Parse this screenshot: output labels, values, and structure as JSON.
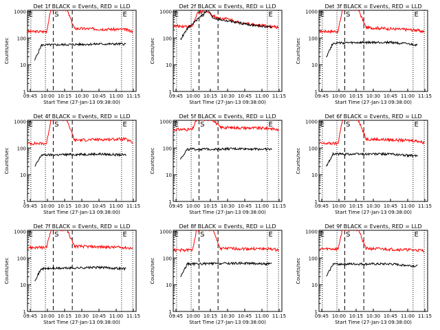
{
  "figure": {
    "layout": "3x3 grid",
    "colors": {
      "events": "#000000",
      "lld": "#ff0000",
      "axes": "#000000",
      "background": "#ffffff"
    },
    "common": {
      "ylabel": "Counts/sec",
      "xlabel": "Start Time (27-Jan-13 09:38:00)",
      "xticks": [
        "09:45",
        "10:00",
        "10:15",
        "10:30",
        "10:45",
        "11:00",
        "11:15"
      ],
      "yticks": [
        "1",
        "10",
        "100",
        "1000"
      ],
      "yscale": "log",
      "ylim": [
        1,
        1100
      ],
      "xlim_min": [
        3,
        100
      ]
    }
  },
  "chart_data": [
    {
      "type": "line",
      "title": "Det 1f BLACK = Events, RED = LLD",
      "markers": {
        "E_left": "E",
        "S": "S",
        "E_right": "E"
      },
      "events": {
        "x": [
          9.5,
          15.5,
          67,
          91
        ],
        "y": [
          15,
          55,
          60,
          60
        ]
      },
      "lld": {
        "x": [
          3,
          20,
          24,
          38,
          45,
          90,
          97
        ],
        "y": [
          175,
          175,
          1200,
          1200,
          230,
          210,
          180
        ]
      },
      "series": [
        {
          "name": "BLACK = Events"
        },
        {
          "name": "RED = LLD"
        }
      ]
    },
    {
      "type": "line",
      "title": "Det 2f BLACK = Events, RED = LLD",
      "markers": {
        "E_left": "E",
        "S": "S",
        "E_right": "E"
      },
      "events": {
        "x": [
          9.5,
          15.5,
          34,
          38,
          44,
          55,
          75,
          91
        ],
        "y": [
          90,
          220,
          1200,
          600,
          500,
          420,
          300,
          260
        ]
      },
      "lld": {
        "x": [
          3,
          20,
          25,
          32,
          38,
          44,
          50,
          60,
          75,
          91,
          97
        ],
        "y": [
          280,
          280,
          900,
          1100,
          700,
          550,
          550,
          400,
          320,
          270,
          250
        ]
      },
      "series": [
        {
          "name": "BLACK = Events"
        },
        {
          "name": "RED = LLD"
        }
      ]
    },
    {
      "type": "line",
      "title": "Det 3f BLACK = Events, RED = LLD",
      "markers": {
        "E_left": "E",
        "S": "S",
        "E_right": "E"
      },
      "events": {
        "x": [
          9.5,
          15.5,
          67,
          91
        ],
        "y": [
          20,
          65,
          70,
          55
        ]
      },
      "lld": {
        "x": [
          3,
          20,
          24,
          38,
          45,
          90,
          97
        ],
        "y": [
          180,
          180,
          1200,
          1200,
          250,
          200,
          170
        ]
      },
      "series": [
        {
          "name": "BLACK = Events"
        },
        {
          "name": "RED = LLD"
        }
      ]
    },
    {
      "type": "line",
      "title": "Det 4f BLACK = Events, RED = LLD",
      "markers": {
        "E_left": "E",
        "S": "S",
        "E_right": "E"
      },
      "events": {
        "x": [
          9.5,
          15.5,
          67,
          91
        ],
        "y": [
          20,
          55,
          60,
          55
        ]
      },
      "lld": {
        "x": [
          3,
          20,
          24,
          38,
          45,
          90,
          97
        ],
        "y": [
          150,
          150,
          1200,
          1200,
          200,
          220,
          160
        ]
      },
      "series": [
        {
          "name": "BLACK = Events"
        },
        {
          "name": "RED = LLD"
        }
      ]
    },
    {
      "type": "line",
      "title": "Det 5f BLACK = Events, RED = LLD",
      "markers": {
        "E_left": "E",
        "S": "S",
        "E_right": "E"
      },
      "events": {
        "x": [
          9.5,
          15.5,
          67,
          91
        ],
        "y": [
          40,
          90,
          95,
          90
        ]
      },
      "lld": {
        "x": [
          3,
          20,
          24,
          38,
          45,
          90,
          97
        ],
        "y": [
          500,
          500,
          1200,
          1200,
          600,
          550,
          480
        ]
      },
      "series": [
        {
          "name": "BLACK = Events"
        },
        {
          "name": "RED = LLD"
        }
      ]
    },
    {
      "type": "line",
      "title": "Det 6f BLACK = Events, RED = LLD",
      "markers": {
        "E_left": "E",
        "S": "S",
        "E_right": "E"
      },
      "events": {
        "x": [
          9.5,
          15.5,
          67,
          91
        ],
        "y": [
          20,
          60,
          60,
          50
        ]
      },
      "lld": {
        "x": [
          3,
          20,
          24,
          38,
          45,
          90,
          97
        ],
        "y": [
          150,
          150,
          1200,
          1200,
          220,
          190,
          160
        ]
      },
      "series": [
        {
          "name": "BLACK = Events"
        },
        {
          "name": "RED = LLD"
        }
      ]
    },
    {
      "type": "line",
      "title": "Det 7f BLACK = Events, RED = LLD",
      "markers": {
        "E_left": "E",
        "S": "S",
        "E_right": "E"
      },
      "events": {
        "x": [
          9.5,
          15.5,
          67,
          91
        ],
        "y": [
          15,
          40,
          45,
          40
        ]
      },
      "lld": {
        "x": [
          3,
          20,
          24,
          38,
          45,
          90,
          97
        ],
        "y": [
          250,
          250,
          1200,
          1200,
          280,
          250,
          230
        ]
      },
      "series": [
        {
          "name": "BLACK = Events"
        },
        {
          "name": "RED = LLD"
        }
      ]
    },
    {
      "type": "line",
      "title": "Det 8f BLACK = Events, RED = LLD",
      "markers": {
        "E_left": "E",
        "S": "S",
        "E_right": "E"
      },
      "events": {
        "x": [
          9.5,
          15.5,
          67,
          91
        ],
        "y": [
          20,
          60,
          65,
          60
        ]
      },
      "lld": {
        "x": [
          3,
          20,
          24,
          38,
          45,
          90,
          97
        ],
        "y": [
          200,
          200,
          1200,
          1200,
          230,
          220,
          200
        ]
      },
      "series": [
        {
          "name": "BLACK = Events"
        },
        {
          "name": "RED = LLD"
        }
      ]
    },
    {
      "type": "line",
      "title": "Det 9f BLACK = Events, RED = LLD",
      "markers": {
        "E_left": "E",
        "S": "S",
        "E_right": "E"
      },
      "events": {
        "x": [
          9.5,
          15.5,
          67,
          91
        ],
        "y": [
          20,
          60,
          60,
          50
        ]
      },
      "lld": {
        "x": [
          3,
          20,
          24,
          38,
          45,
          90,
          97
        ],
        "y": [
          220,
          220,
          1200,
          1200,
          230,
          200,
          190
        ]
      },
      "series": [
        {
          "name": "BLACK = Events"
        },
        {
          "name": "RED = LLD"
        }
      ]
    }
  ]
}
